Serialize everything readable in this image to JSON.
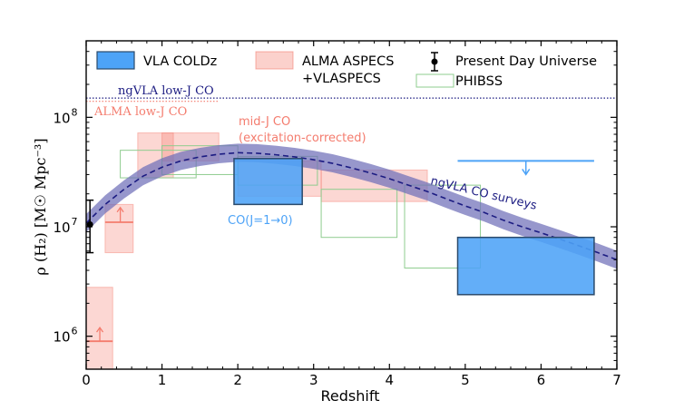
{
  "chart_data": {
    "type": "scatter",
    "title": "",
    "xlabel": "Redshift",
    "ylabel": "ρ (H₂) [M☉ Mpc⁻³]",
    "xlim": [
      0,
      7
    ],
    "ylim": [
      500000,
      500000000
    ],
    "yscale": "log",
    "grid": false,
    "xticks": [
      {
        "value": 0,
        "label": "0"
      },
      {
        "value": 1,
        "label": "1"
      },
      {
        "value": 2,
        "label": "2"
      },
      {
        "value": 3,
        "label": "3"
      },
      {
        "value": 4,
        "label": "4"
      },
      {
        "value": 5,
        "label": "5"
      },
      {
        "value": 6,
        "label": "6"
      },
      {
        "value": 7,
        "label": "7"
      }
    ],
    "yticks": [
      {
        "value": 1000000,
        "label": "10",
        "exp": "6"
      },
      {
        "value": 10000000,
        "label": "10",
        "exp": "7"
      },
      {
        "value": 100000000,
        "label": "10",
        "exp": "8"
      }
    ],
    "colors": {
      "vla": "#4da3f7",
      "vla_edge": "#2b4a6b",
      "alma": "#f47c6e",
      "phibss": "#8fcc8f",
      "ngvla": "#1c1c82",
      "band": "#6f6fb8"
    },
    "legend": {
      "placement": "top",
      "vla": "VLA COLDz",
      "alma_line1": "ALMA ASPECS",
      "alma_line2": "+VLASPECS",
      "present": "Present Day Universe",
      "phibss": "PHIBSS"
    },
    "annotations": {
      "ngvla_lowj": "ngVLA low-J CO",
      "alma_lowj": "ALMA low-J CO",
      "midj_line1": "mid-J CO",
      "midj_line2": "(excitation-corrected)",
      "co10": "CO(J=1→0)",
      "ngvla_surveys": "ngVLA CO surveys"
    },
    "reference_lines": [
      {
        "name": "ngVLA low-J CO",
        "y": 150000000,
        "x": [
          0,
          7
        ],
        "style": "dotted"
      },
      {
        "name": "ALMA low-J CO",
        "y": 140000000,
        "x": [
          0,
          1.75
        ],
        "style": "dotted"
      }
    ],
    "model_curve": {
      "x": [
        0,
        0.25,
        0.5,
        0.75,
        1.0,
        1.25,
        1.5,
        1.75,
        2.0,
        2.25,
        2.5,
        2.75,
        3.0,
        3.25,
        3.5,
        3.75,
        4.0,
        4.25,
        4.5,
        4.75,
        5.0,
        5.25,
        5.5,
        5.75,
        6.0,
        6.25,
        6.5,
        6.75,
        7.0
      ],
      "y": [
        10800000,
        16000000,
        22000000,
        29000000,
        35000000,
        40000000,
        43500000,
        46000000,
        47500000,
        47000000,
        45500000,
        43500000,
        41000000,
        38000000,
        34500000,
        31000000,
        27500000,
        24000000,
        21000000,
        18000000,
        15500000,
        13500000,
        11500000,
        10000000,
        8800000,
        7700000,
        6700000,
        5800000,
        5000000
      ]
    },
    "series": [
      {
        "name": "VLA COLDz",
        "type": "box",
        "boxes": [
          {
            "x": [
              1.95,
              2.85
            ],
            "y": [
              16000000,
              42000000
            ]
          },
          {
            "x": [
              4.9,
              6.7
            ],
            "y": [
              2400000,
              8000000
            ]
          }
        ],
        "upper_limit": {
          "x": [
            4.9,
            6.7
          ],
          "y": 40000000,
          "arrow_x": 5.8,
          "arrow_to": 30000000
        }
      },
      {
        "name": "ALMA ASPECS +VLASPECS",
        "type": "box",
        "boxes": [
          {
            "x": [
              0.0,
              0.35
            ],
            "y": [
              500000,
              2800000
            ]
          },
          {
            "x": [
              0.25,
              0.62
            ],
            "y": [
              5800000,
              16000000
            ]
          },
          {
            "x": [
              0.68,
              1.15
            ],
            "y": [
              28000000,
              72000000
            ]
          },
          {
            "x": [
              1.0,
              1.75
            ],
            "y": [
              40000000,
              72000000
            ]
          },
          {
            "x": [
              2.0,
              3.1
            ],
            "y": [
              19000000,
              40000000
            ]
          },
          {
            "x": [
              3.1,
              4.5
            ],
            "y": [
              17000000,
              33000000
            ]
          }
        ],
        "lower_limits": [
          {
            "x": [
              0.0,
              0.35
            ],
            "y": 900000,
            "arrow_x": 0.18,
            "arrow_to": 1200000
          },
          {
            "x": [
              0.25,
              0.62
            ],
            "y": 11000000,
            "arrow_x": 0.45,
            "arrow_to": 15000000
          }
        ]
      },
      {
        "name": "PHIBSS",
        "type": "box",
        "boxes": [
          {
            "x": [
              0.45,
              1.45
            ],
            "y": [
              28000000,
              50000000
            ]
          },
          {
            "x": [
              1.0,
              2.0
            ],
            "y": [
              30000000,
              55000000
            ]
          },
          {
            "x": [
              2.0,
              3.05
            ],
            "y": [
              24000000,
              44000000
            ]
          },
          {
            "x": [
              3.1,
              4.1
            ],
            "y": [
              8000000,
              22000000
            ]
          },
          {
            "x": [
              4.2,
              5.2
            ],
            "y": [
              4200000,
              24000000
            ]
          }
        ]
      },
      {
        "name": "Present Day Universe",
        "type": "errorbar",
        "points": [
          {
            "x": 0.05,
            "y": 10500000,
            "ylo": 5800000,
            "yhi": 17500000
          }
        ]
      }
    ]
  }
}
